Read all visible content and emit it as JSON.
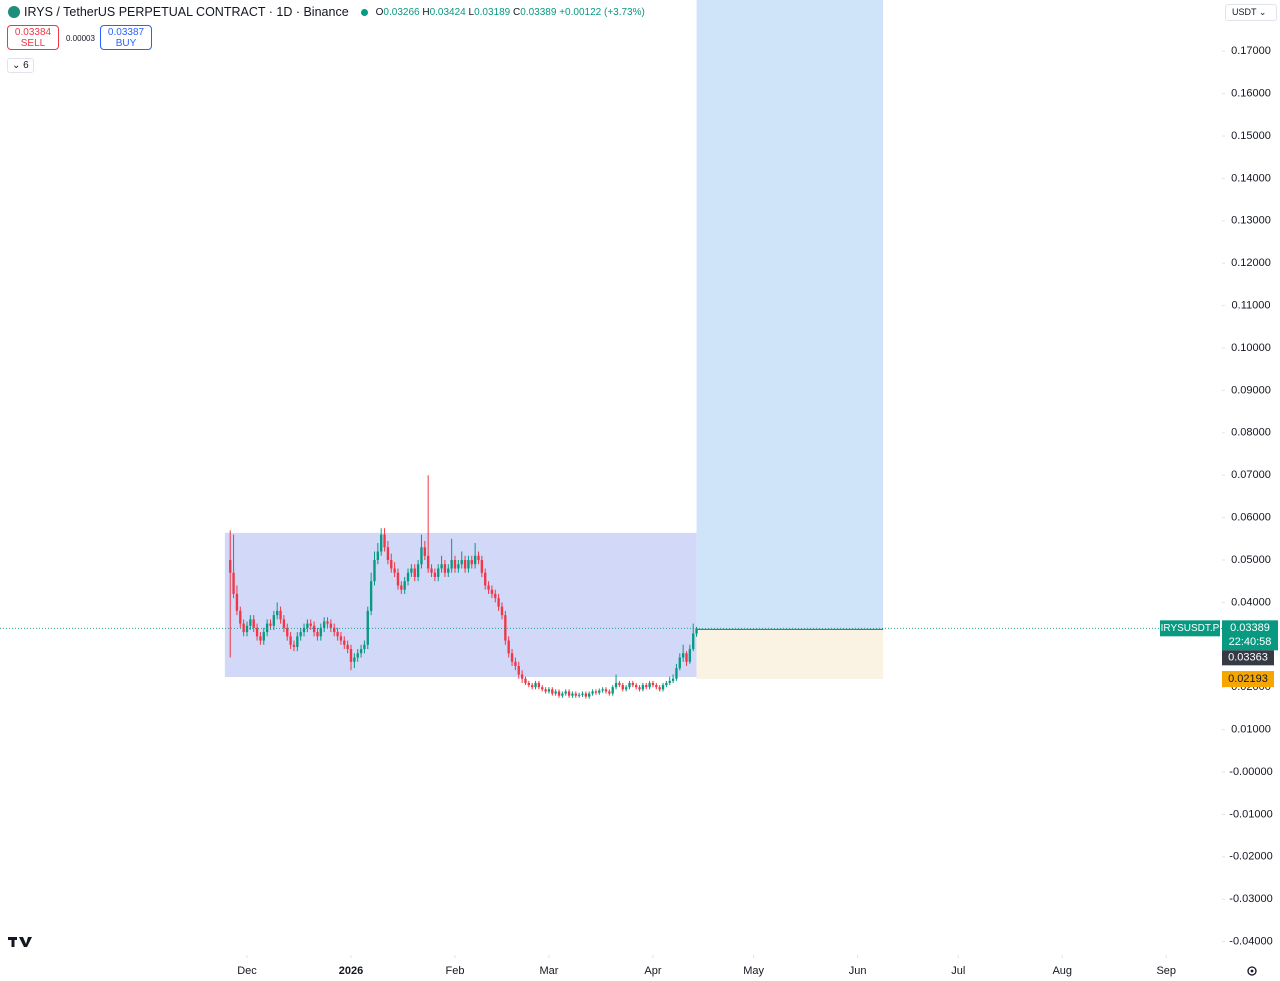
{
  "header": {
    "symbol": "IRYS / TetherUS PERPETUAL CONTRACT · 1D · Binance",
    "ohlc_letters": [
      "O",
      "H",
      "L",
      "C"
    ],
    "change": {
      "value": 0.00122,
      "label": "+0.00122"
    },
    "change_pct": {
      "value": 3.73,
      "label": "(+3.73%)"
    },
    "sell_price": 0.03384,
    "sell_label": "SELL",
    "spread": 3e-05,
    "buy_price": 0.03387,
    "buy_label": "BUY",
    "indicators_count": 6,
    "currency": "USDT",
    "symbol_label": "IRYSUSDT.P",
    "countdown": "22:40:58"
  },
  "chart_data": {
    "type": "candlestick",
    "up_color": "#089981",
    "down_color": "#f23645",
    "grid": false,
    "xlim": [
      -73.62,
      290.61
    ],
    "ylim": [
      -0.04316,
      0.18208
    ],
    "xticks": [
      {
        "value": 0,
        "label": "Dec"
      },
      {
        "value": 31,
        "label": "2026"
      },
      {
        "value": 62,
        "label": "Feb"
      },
      {
        "value": 90,
        "label": "Mar"
      },
      {
        "value": 121,
        "label": "Apr"
      },
      {
        "value": 151,
        "label": "May"
      },
      {
        "value": 182,
        "label": "Jun"
      },
      {
        "value": 212,
        "label": "Jul"
      },
      {
        "value": 243,
        "label": "Aug"
      },
      {
        "value": 274,
        "label": "Sep"
      }
    ],
    "yticks": [
      {
        "value": 0.17,
        "label": "0.17000"
      },
      {
        "value": 0.16,
        "label": "0.16000"
      },
      {
        "value": 0.15,
        "label": "0.15000"
      },
      {
        "value": 0.14,
        "label": "0.14000"
      },
      {
        "value": 0.13,
        "label": "0.13000"
      },
      {
        "value": 0.12,
        "label": "0.12000"
      },
      {
        "value": 0.11,
        "label": "0.11000"
      },
      {
        "value": 0.1,
        "label": "0.10000"
      },
      {
        "value": 0.09,
        "label": "0.09000"
      },
      {
        "value": 0.08,
        "label": "0.08000"
      },
      {
        "value": 0.07,
        "label": "0.07000"
      },
      {
        "value": 0.06,
        "label": "0.06000"
      },
      {
        "value": 0.05,
        "label": "0.05000"
      },
      {
        "value": 0.04,
        "label": "0.04000"
      },
      {
        "value": 0.03,
        "label": "0.03000"
      },
      {
        "value": 0.02,
        "label": "0.02000"
      },
      {
        "value": 0.01,
        "label": "0.01000"
      },
      {
        "value": 0,
        "label": "-0.00000"
      },
      {
        "value": -0.01,
        "label": "-0.01000"
      },
      {
        "value": -0.02,
        "label": "-0.02000"
      },
      {
        "value": -0.03,
        "label": "-0.03000"
      },
      {
        "value": -0.04,
        "label": "-0.04000"
      }
    ],
    "x": [
      -5,
      -4,
      -3,
      -2,
      -1,
      0,
      1,
      2,
      3,
      4,
      5,
      6,
      7,
      8,
      9,
      10,
      11,
      12,
      13,
      14,
      15,
      16,
      17,
      18,
      19,
      20,
      21,
      22,
      23,
      24,
      25,
      26,
      27,
      28,
      29,
      30,
      31,
      32,
      33,
      34,
      35,
      36,
      37,
      38,
      39,
      40,
      41,
      42,
      43,
      44,
      45,
      46,
      47,
      48,
      49,
      50,
      51,
      52,
      53,
      54,
      55,
      56,
      57,
      58,
      59,
      60,
      61,
      62,
      63,
      64,
      65,
      66,
      67,
      68,
      69,
      70,
      71,
      72,
      73,
      74,
      75,
      76,
      77,
      78,
      79,
      80,
      81,
      82,
      83,
      84,
      85,
      86,
      87,
      88,
      89,
      90,
      91,
      92,
      93,
      94,
      95,
      96,
      97,
      98,
      99,
      100,
      101,
      102,
      103,
      104,
      105,
      106,
      107,
      108,
      109,
      110,
      111,
      112,
      113,
      114,
      115,
      116,
      117,
      118,
      119,
      120,
      121,
      122,
      123,
      124,
      125,
      126,
      127,
      128,
      129,
      130,
      131,
      132,
      133,
      134
    ],
    "open": [
      0.05,
      0.047,
      0.042,
      0.038,
      0.035,
      0.033,
      0.0345,
      0.036,
      0.034,
      0.032,
      0.031,
      0.033,
      0.035,
      0.0345,
      0.037,
      0.038,
      0.036,
      0.034,
      0.032,
      0.03,
      0.0295,
      0.032,
      0.033,
      0.034,
      0.035,
      0.0345,
      0.033,
      0.032,
      0.034,
      0.0355,
      0.035,
      0.034,
      0.033,
      0.032,
      0.031,
      0.03,
      0.029,
      0.026,
      0.027,
      0.028,
      0.029,
      0.03,
      0.038,
      0.045,
      0.05,
      0.052,
      0.056,
      0.053,
      0.05,
      0.048,
      0.047,
      0.044,
      0.043,
      0.045,
      0.047,
      0.048,
      0.046,
      0.049,
      0.053,
      0.051,
      0.048,
      0.047,
      0.046,
      0.048,
      0.049,
      0.047,
      0.048,
      0.05,
      0.048,
      0.049,
      0.05,
      0.048,
      0.05,
      0.049,
      0.051,
      0.05,
      0.047,
      0.044,
      0.043,
      0.042,
      0.041,
      0.039,
      0.037,
      0.031,
      0.028,
      0.026,
      0.025,
      0.023,
      0.022,
      0.021,
      0.0205,
      0.02,
      0.021,
      0.02,
      0.0195,
      0.019,
      0.0195,
      0.0185,
      0.019,
      0.018,
      0.0185,
      0.019,
      0.018,
      0.0185,
      0.018,
      0.0182,
      0.0185,
      0.0178,
      0.0185,
      0.019,
      0.0187,
      0.0192,
      0.0195,
      0.019,
      0.0185,
      0.02,
      0.021,
      0.0205,
      0.0195,
      0.02,
      0.021,
      0.0205,
      0.02,
      0.0195,
      0.0205,
      0.02,
      0.021,
      0.0205,
      0.02,
      0.0195,
      0.0205,
      0.021,
      0.0215,
      0.022,
      0.0245,
      0.027,
      0.028,
      0.026,
      0.029,
      0.03266
    ],
    "high": [
      0.057,
      0.056,
      0.044,
      0.039,
      0.036,
      0.0355,
      0.037,
      0.037,
      0.035,
      0.033,
      0.034,
      0.036,
      0.036,
      0.038,
      0.04,
      0.039,
      0.037,
      0.035,
      0.033,
      0.031,
      0.033,
      0.034,
      0.035,
      0.036,
      0.036,
      0.0355,
      0.034,
      0.035,
      0.0365,
      0.0365,
      0.036,
      0.035,
      0.034,
      0.033,
      0.032,
      0.031,
      0.03,
      0.028,
      0.029,
      0.03,
      0.031,
      0.039,
      0.047,
      0.052,
      0.054,
      0.0575,
      0.0575,
      0.0545,
      0.0515,
      0.0495,
      0.048,
      0.045,
      0.046,
      0.048,
      0.049,
      0.049,
      0.05,
      0.056,
      0.0545,
      0.07,
      0.049,
      0.048,
      0.049,
      0.051,
      0.05,
      0.049,
      0.055,
      0.051,
      0.05,
      0.052,
      0.051,
      0.051,
      0.051,
      0.054,
      0.052,
      0.051,
      0.048,
      0.045,
      0.044,
      0.043,
      0.042,
      0.04,
      0.038,
      0.032,
      0.029,
      0.027,
      0.026,
      0.024,
      0.0225,
      0.0215,
      0.021,
      0.0215,
      0.0215,
      0.0205,
      0.02,
      0.02,
      0.02,
      0.0195,
      0.0195,
      0.019,
      0.0195,
      0.0195,
      0.019,
      0.019,
      0.0187,
      0.019,
      0.019,
      0.019,
      0.0195,
      0.0195,
      0.0197,
      0.02,
      0.02,
      0.0195,
      0.0205,
      0.023,
      0.0215,
      0.021,
      0.0205,
      0.0215,
      0.0215,
      0.021,
      0.0205,
      0.021,
      0.021,
      0.0215,
      0.0215,
      0.021,
      0.0205,
      0.021,
      0.0215,
      0.0225,
      0.023,
      0.0255,
      0.028,
      0.03,
      0.0285,
      0.03,
      0.035,
      0.03424
    ],
    "low": [
      0.027,
      0.041,
      0.037,
      0.034,
      0.032,
      0.032,
      0.0335,
      0.033,
      0.031,
      0.03,
      0.03,
      0.032,
      0.0335,
      0.0335,
      0.036,
      0.035,
      0.033,
      0.031,
      0.029,
      0.0285,
      0.0285,
      0.031,
      0.032,
      0.033,
      0.0335,
      0.032,
      0.031,
      0.031,
      0.033,
      0.034,
      0.033,
      0.032,
      0.031,
      0.03,
      0.029,
      0.028,
      0.024,
      0.0245,
      0.026,
      0.027,
      0.028,
      0.029,
      0.037,
      0.044,
      0.049,
      0.051,
      0.052,
      0.049,
      0.047,
      0.046,
      0.043,
      0.042,
      0.042,
      0.044,
      0.046,
      0.045,
      0.045,
      0.048,
      0.05,
      0.047,
      0.046,
      0.045,
      0.045,
      0.047,
      0.046,
      0.046,
      0.047,
      0.047,
      0.047,
      0.048,
      0.047,
      0.047,
      0.048,
      0.048,
      0.049,
      0.046,
      0.043,
      0.042,
      0.041,
      0.04,
      0.038,
      0.036,
      0.03,
      0.027,
      0.025,
      0.024,
      0.022,
      0.021,
      0.0205,
      0.02,
      0.0195,
      0.0195,
      0.0195,
      0.019,
      0.0185,
      0.0185,
      0.018,
      0.018,
      0.0175,
      0.0175,
      0.018,
      0.0175,
      0.0175,
      0.0175,
      0.0175,
      0.0177,
      0.0173,
      0.0173,
      0.018,
      0.0182,
      0.0182,
      0.0187,
      0.0185,
      0.018,
      0.018,
      0.0195,
      0.02,
      0.019,
      0.019,
      0.0195,
      0.02,
      0.0195,
      0.019,
      0.019,
      0.0195,
      0.0195,
      0.02,
      0.0195,
      0.019,
      0.019,
      0.02,
      0.0205,
      0.021,
      0.0215,
      0.024,
      0.026,
      0.025,
      0.0255,
      0.0285,
      0.03189
    ],
    "close": [
      0.047,
      0.042,
      0.038,
      0.035,
      0.033,
      0.0345,
      0.036,
      0.034,
      0.032,
      0.031,
      0.033,
      0.035,
      0.0345,
      0.037,
      0.038,
      0.036,
      0.034,
      0.032,
      0.03,
      0.0295,
      0.032,
      0.033,
      0.034,
      0.035,
      0.0345,
      0.033,
      0.032,
      0.034,
      0.0355,
      0.035,
      0.034,
      0.033,
      0.032,
      0.031,
      0.03,
      0.029,
      0.026,
      0.027,
      0.028,
      0.029,
      0.03,
      0.038,
      0.045,
      0.05,
      0.052,
      0.056,
      0.053,
      0.05,
      0.048,
      0.047,
      0.044,
      0.043,
      0.045,
      0.047,
      0.048,
      0.046,
      0.049,
      0.053,
      0.051,
      0.048,
      0.047,
      0.046,
      0.048,
      0.049,
      0.047,
      0.048,
      0.05,
      0.048,
      0.049,
      0.05,
      0.048,
      0.05,
      0.049,
      0.051,
      0.05,
      0.047,
      0.044,
      0.043,
      0.042,
      0.041,
      0.039,
      0.037,
      0.031,
      0.028,
      0.026,
      0.025,
      0.023,
      0.022,
      0.021,
      0.0205,
      0.02,
      0.021,
      0.02,
      0.0195,
      0.019,
      0.0195,
      0.0185,
      0.019,
      0.018,
      0.0185,
      0.019,
      0.018,
      0.0185,
      0.018,
      0.0182,
      0.0185,
      0.0178,
      0.0185,
      0.019,
      0.0187,
      0.0192,
      0.0195,
      0.019,
      0.0185,
      0.02,
      0.021,
      0.0205,
      0.0195,
      0.02,
      0.021,
      0.0205,
      0.02,
      0.0195,
      0.0205,
      0.02,
      0.021,
      0.0205,
      0.02,
      0.0195,
      0.0205,
      0.021,
      0.0215,
      0.022,
      0.0245,
      0.027,
      0.028,
      0.026,
      0.029,
      0.03266,
      0.03389
    ],
    "zone": {
      "x": [
        -6.6,
        134
      ],
      "y": [
        0.0224,
        0.0564
      ],
      "color": "#d1d8f8"
    },
    "position": {
      "entry": 0.03363,
      "stop": 0.02193,
      "x": [
        134,
        189.6
      ],
      "profit_color": "#cfe4f9",
      "risk_color": "#faf3e3"
    }
  }
}
